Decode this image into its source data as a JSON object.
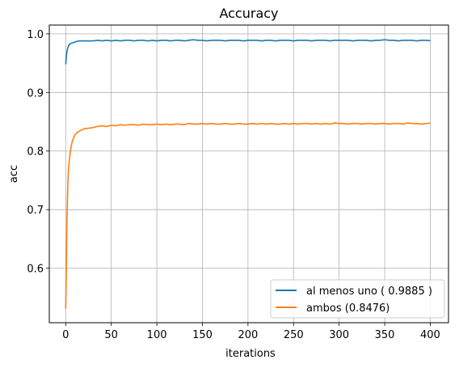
{
  "chart_data": {
    "type": "line",
    "title": "Accuracy",
    "xlabel": "iterations",
    "ylabel": "acc",
    "xlim": [
      -18,
      420
    ],
    "ylim": [
      0.507,
      1.015
    ],
    "x_ticks": [
      0,
      50,
      100,
      150,
      200,
      250,
      300,
      350,
      400
    ],
    "y_ticks": [
      0.6,
      0.7,
      0.8,
      0.9,
      1.0
    ],
    "y_tick_labels": [
      "0.6",
      "0.7",
      "0.8",
      "0.9",
      "1.0"
    ],
    "grid": true,
    "legend_position": "bottom-right",
    "series": [
      {
        "name": "al menos uno ( 0.9885 )",
        "color": "#1f77b4",
        "x": [
          0,
          1,
          2,
          3,
          4,
          5,
          6,
          8,
          10,
          12,
          15,
          20,
          25,
          30,
          35,
          40,
          45,
          50,
          55,
          60,
          65,
          70,
          75,
          80,
          85,
          90,
          95,
          100,
          105,
          110,
          115,
          120,
          125,
          130,
          135,
          140,
          145,
          150,
          155,
          160,
          165,
          170,
          175,
          180,
          185,
          190,
          195,
          200,
          205,
          210,
          215,
          220,
          225,
          230,
          235,
          240,
          245,
          250,
          255,
          260,
          265,
          270,
          275,
          280,
          285,
          290,
          295,
          300,
          305,
          310,
          315,
          320,
          325,
          330,
          335,
          340,
          345,
          350,
          355,
          360,
          365,
          370,
          375,
          380,
          385,
          390,
          395,
          400
        ],
        "y": [
          0.948,
          0.966,
          0.975,
          0.979,
          0.982,
          0.983,
          0.984,
          0.985,
          0.986,
          0.987,
          0.988,
          0.988,
          0.988,
          0.988,
          0.989,
          0.988,
          0.989,
          0.988,
          0.989,
          0.988,
          0.989,
          0.989,
          0.988,
          0.989,
          0.989,
          0.988,
          0.989,
          0.988,
          0.989,
          0.989,
          0.988,
          0.989,
          0.989,
          0.988,
          0.989,
          0.99,
          0.989,
          0.989,
          0.988,
          0.989,
          0.989,
          0.989,
          0.988,
          0.989,
          0.989,
          0.989,
          0.988,
          0.989,
          0.989,
          0.989,
          0.988,
          0.989,
          0.989,
          0.988,
          0.989,
          0.989,
          0.989,
          0.988,
          0.989,
          0.989,
          0.989,
          0.988,
          0.989,
          0.989,
          0.989,
          0.988,
          0.989,
          0.989,
          0.989,
          0.989,
          0.988,
          0.989,
          0.989,
          0.989,
          0.988,
          0.989,
          0.989,
          0.99,
          0.989,
          0.989,
          0.988,
          0.989,
          0.989,
          0.989,
          0.988,
          0.989,
          0.989,
          0.9885
        ]
      },
      {
        "name": "ambos (0.8476)",
        "color": "#ff7f0e",
        "x": [
          0,
          0.5,
          1,
          1.5,
          2,
          2.5,
          3,
          4,
          5,
          6,
          7,
          8,
          9,
          10,
          12,
          14,
          16,
          18,
          20,
          25,
          30,
          35,
          40,
          45,
          50,
          55,
          60,
          65,
          70,
          75,
          80,
          85,
          90,
          95,
          100,
          105,
          110,
          115,
          120,
          125,
          130,
          135,
          140,
          145,
          150,
          155,
          160,
          165,
          170,
          175,
          180,
          185,
          190,
          195,
          200,
          205,
          210,
          215,
          220,
          225,
          230,
          235,
          240,
          245,
          250,
          255,
          260,
          265,
          270,
          275,
          280,
          285,
          290,
          295,
          300,
          305,
          310,
          315,
          320,
          325,
          330,
          335,
          340,
          345,
          350,
          355,
          360,
          365,
          370,
          375,
          380,
          385,
          390,
          395,
          400
        ],
        "y": [
          0.531,
          0.58,
          0.64,
          0.69,
          0.725,
          0.75,
          0.768,
          0.785,
          0.798,
          0.808,
          0.815,
          0.82,
          0.824,
          0.827,
          0.831,
          0.833,
          0.835,
          0.836,
          0.838,
          0.839,
          0.84,
          0.842,
          0.843,
          0.842,
          0.844,
          0.843,
          0.845,
          0.844,
          0.845,
          0.845,
          0.844,
          0.846,
          0.845,
          0.845,
          0.846,
          0.845,
          0.846,
          0.845,
          0.846,
          0.846,
          0.845,
          0.847,
          0.846,
          0.846,
          0.847,
          0.846,
          0.847,
          0.846,
          0.846,
          0.847,
          0.846,
          0.846,
          0.847,
          0.846,
          0.846,
          0.847,
          0.846,
          0.847,
          0.846,
          0.847,
          0.846,
          0.846,
          0.847,
          0.846,
          0.847,
          0.846,
          0.847,
          0.847,
          0.846,
          0.847,
          0.846,
          0.847,
          0.846,
          0.848,
          0.847,
          0.847,
          0.846,
          0.847,
          0.847,
          0.846,
          0.847,
          0.847,
          0.846,
          0.847,
          0.847,
          0.846,
          0.847,
          0.847,
          0.846,
          0.848,
          0.847,
          0.847,
          0.846,
          0.847,
          0.8476
        ]
      }
    ]
  }
}
